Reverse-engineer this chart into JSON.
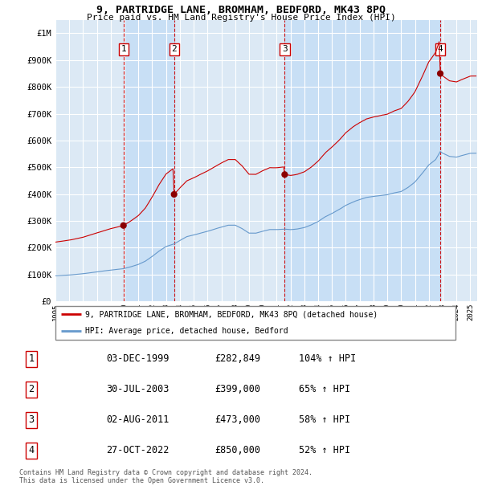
{
  "title": "9, PARTRIDGE LANE, BROMHAM, BEDFORD, MK43 8PQ",
  "subtitle": "Price paid vs. HM Land Registry's House Price Index (HPI)",
  "ylim": [
    0,
    1050000
  ],
  "yticks": [
    0,
    100000,
    200000,
    300000,
    400000,
    500000,
    600000,
    700000,
    800000,
    900000,
    1000000
  ],
  "ytick_labels": [
    "£0",
    "£100K",
    "£200K",
    "£300K",
    "£400K",
    "£500K",
    "£600K",
    "£700K",
    "£800K",
    "£900K",
    "£1M"
  ],
  "bg_color": "#dce9f5",
  "grid_color": "#ffffff",
  "sale_dates_decimal": [
    1999.92,
    2003.58,
    2011.58,
    2022.83
  ],
  "sale_prices": [
    282849,
    399000,
    473000,
    850000
  ],
  "sale_labels": [
    "1",
    "2",
    "3",
    "4"
  ],
  "legend_property": "9, PARTRIDGE LANE, BROMHAM, BEDFORD, MK43 8PQ (detached house)",
  "legend_hpi": "HPI: Average price, detached house, Bedford",
  "table_entries": [
    {
      "num": "1",
      "date": "03-DEC-1999",
      "price": "£282,849",
      "hpi": "104% ↑ HPI"
    },
    {
      "num": "2",
      "date": "30-JUL-2003",
      "price": "£399,000",
      "hpi": "65% ↑ HPI"
    },
    {
      "num": "3",
      "date": "02-AUG-2011",
      "price": "£473,000",
      "hpi": "58% ↑ HPI"
    },
    {
      "num": "4",
      "date": "27-OCT-2022",
      "price": "£850,000",
      "hpi": "52% ↑ HPI"
    }
  ],
  "footnote": "Contains HM Land Registry data © Crown copyright and database right 2024.\nThis data is licensed under the Open Government Licence v3.0.",
  "hpi_line_color": "#6699cc",
  "property_line_color": "#cc0000",
  "sale_marker_color": "#8b0000",
  "vline_color": "#cc0000",
  "shade_color": "#c8dff5",
  "xlim_start": 1995.0,
  "xlim_end": 2025.5
}
